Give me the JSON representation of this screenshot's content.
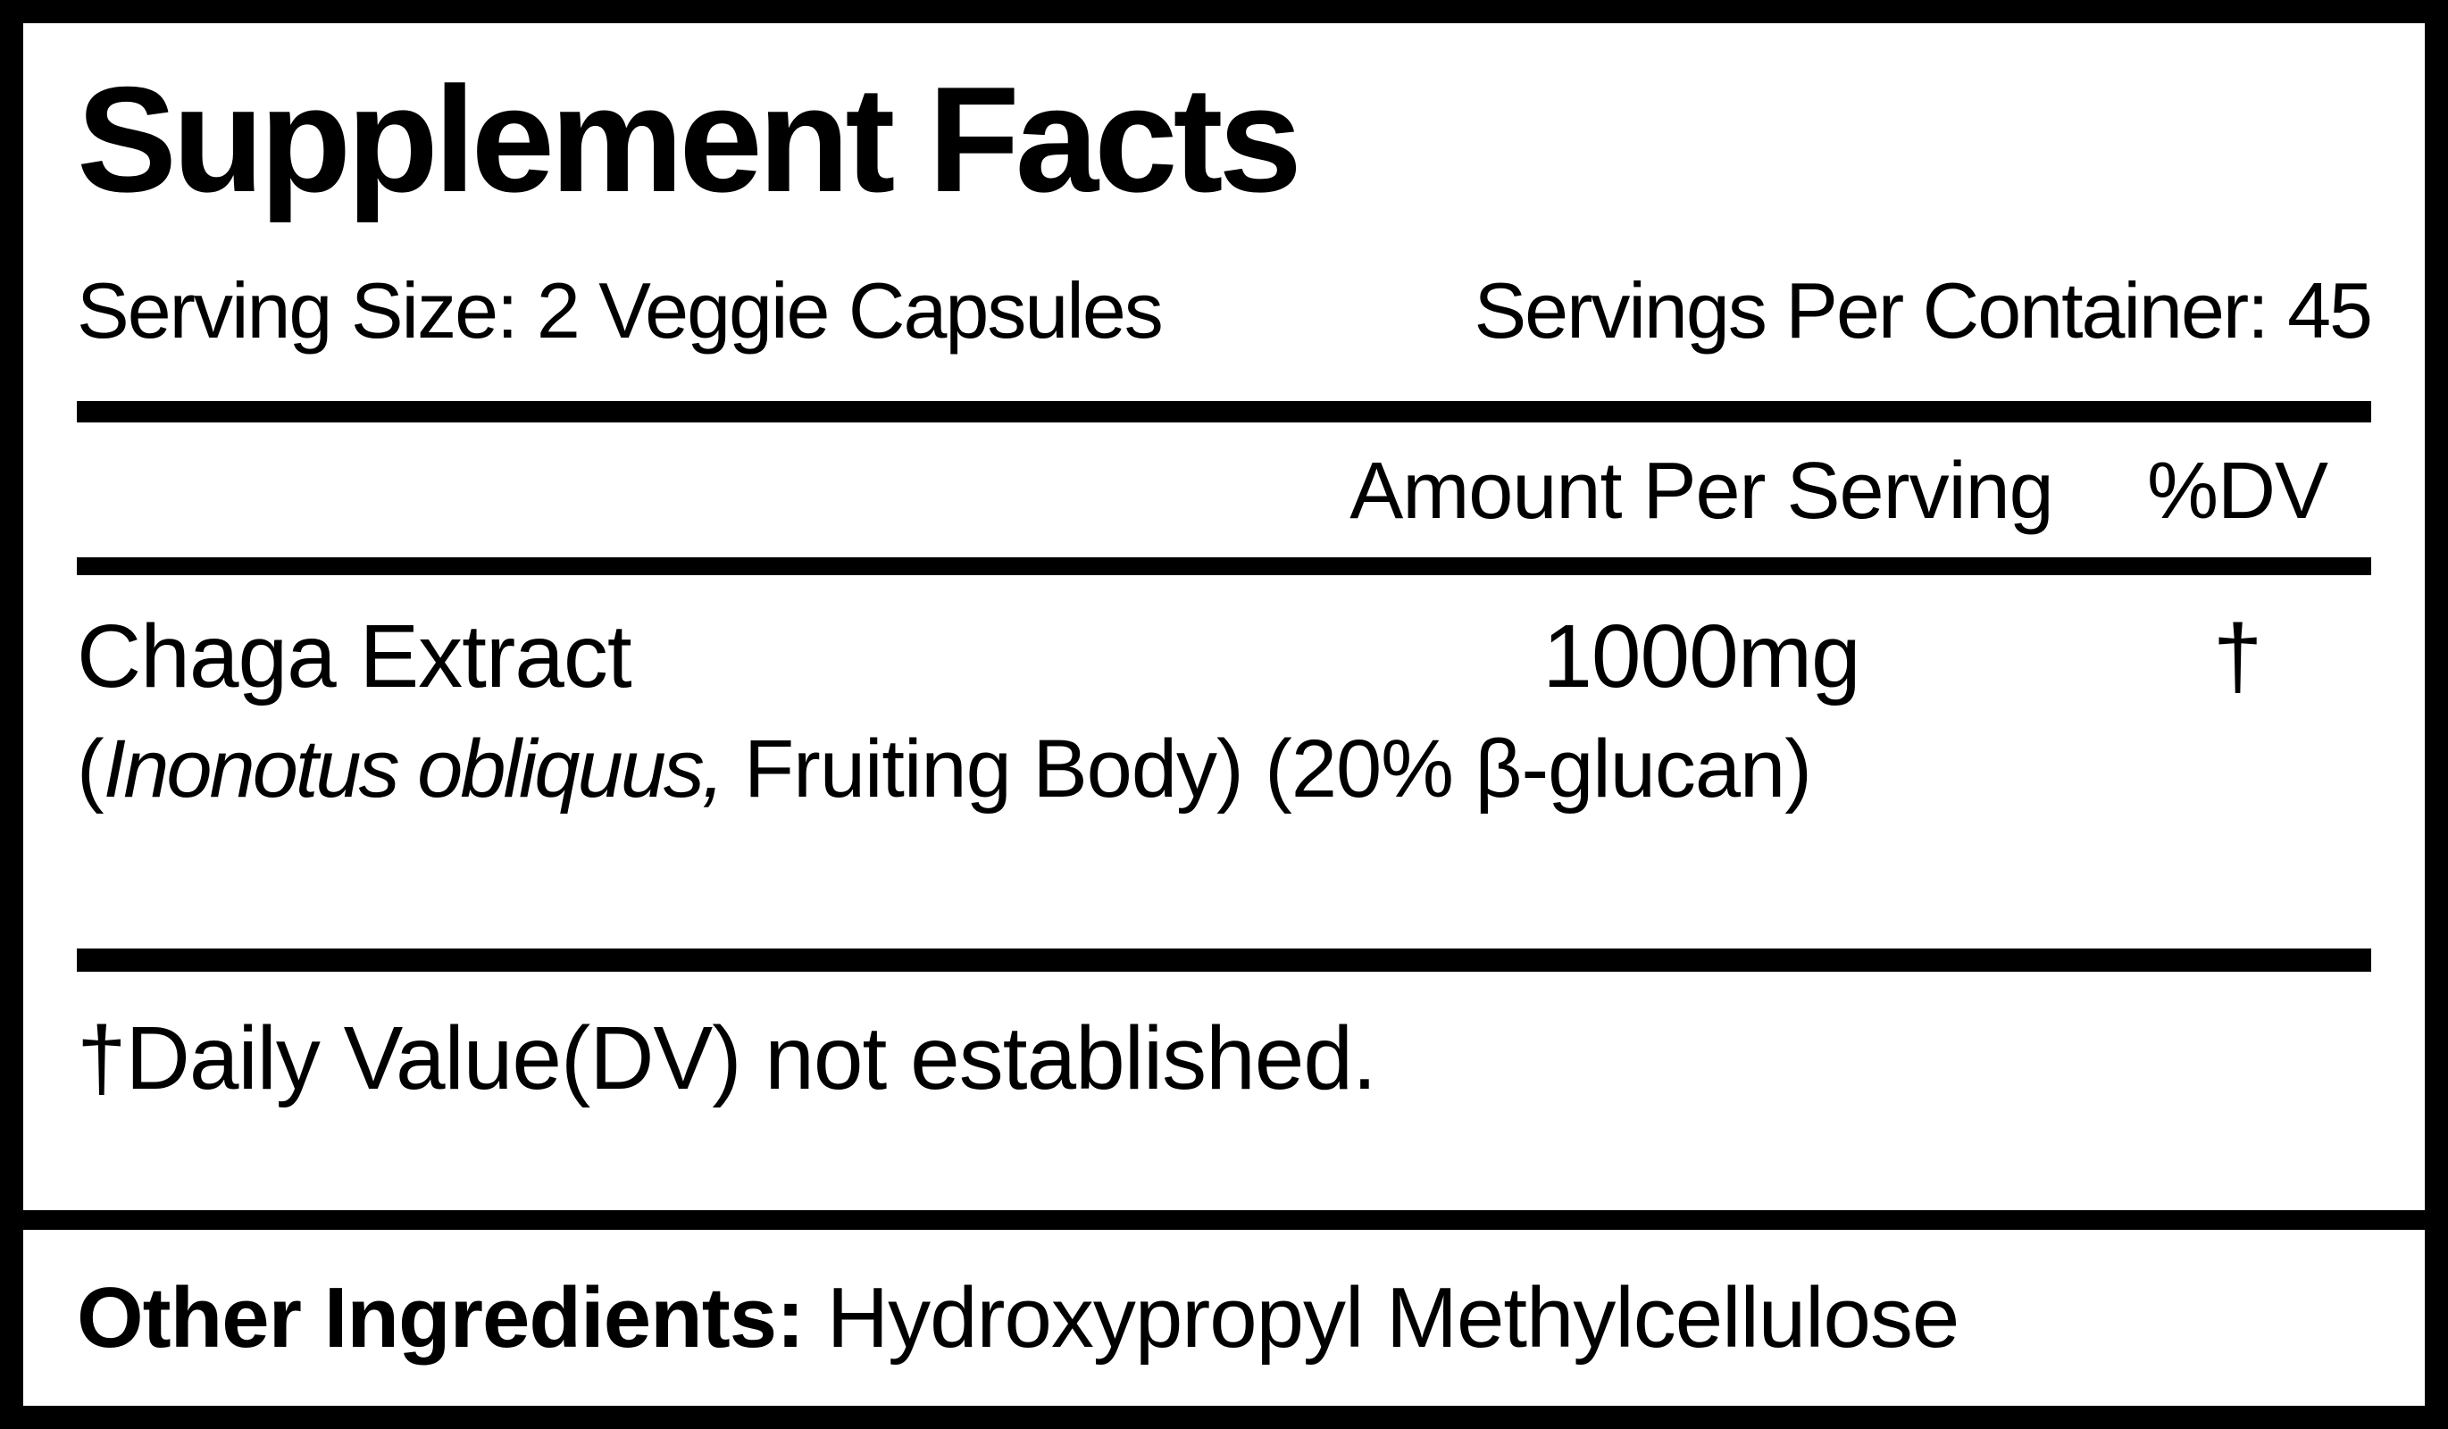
{
  "supplement_label": {
    "title": "Supplement Facts",
    "serving_info": {
      "serving_size": "Serving Size: 2 Veggie Capsules",
      "servings_per_container": "Servings Per Container: 45"
    },
    "table": {
      "columns": {
        "amount_header": "Amount Per Serving",
        "dv_header": "%DV"
      },
      "rows": [
        {
          "name": "Chaga Extract",
          "amount": "1000mg",
          "dv": "†",
          "detail_open": "(",
          "detail_latin": "Inonotus obliquus,",
          "detail_rest": " Fruiting Body) (20% β-glucan)"
        }
      ]
    },
    "footnote": "†Daily Value(DV) not established.",
    "other_ingredients": {
      "label": "Other Ingredients:",
      "value": " Hydroxypropyl Methylcellulose"
    },
    "colors": {
      "text": "#000000",
      "background": "#ffffff",
      "border": "#000000"
    }
  }
}
